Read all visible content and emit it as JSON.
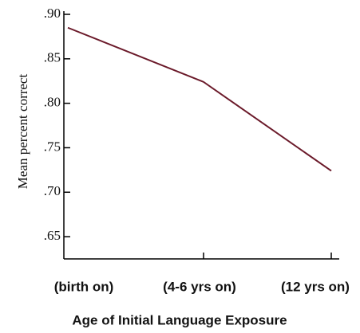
{
  "chart_data": {
    "type": "line",
    "xlabel": "Age of Initial Language Exposure",
    "ylabel": "Mean percent correct",
    "categories": [
      "(birth on)",
      "(4-6 yrs on)",
      "(12 yrs on)"
    ],
    "series": [
      {
        "name": "Mean percent correct",
        "color": "#6b1a2a",
        "values": [
          0.885,
          0.824,
          0.724
        ]
      }
    ],
    "ylim": [
      0.625,
      0.9
    ],
    "yticks": [
      {
        "value": 0.65,
        "label": ".65"
      },
      {
        "value": 0.7,
        "label": ".70"
      },
      {
        "value": 0.75,
        "label": ".75"
      },
      {
        "value": 0.8,
        "label": ".80"
      },
      {
        "value": 0.85,
        "label": ".85"
      },
      {
        "value": 0.9,
        "label": ".90"
      }
    ],
    "grid": false
  }
}
